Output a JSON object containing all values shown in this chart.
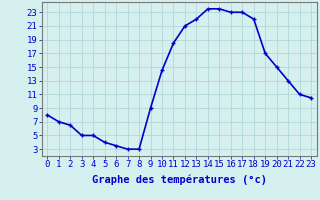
{
  "hours": [
    0,
    1,
    2,
    3,
    4,
    5,
    6,
    7,
    8,
    9,
    10,
    11,
    12,
    13,
    14,
    15,
    16,
    17,
    18,
    19,
    20,
    21,
    22,
    23
  ],
  "temps": [
    8,
    7,
    6.5,
    5,
    5,
    4,
    3.5,
    3,
    3,
    9,
    14.5,
    18.5,
    21,
    22,
    23.5,
    23.5,
    23,
    23,
    22,
    17,
    15,
    13,
    11,
    10.5
  ],
  "line_color": "#0000cc",
  "marker": "+",
  "bg_color": "#d6f0f0",
  "grid_color": "#b0d8d8",
  "xlabel": "Graphe des températures (°c)",
  "xlabel_color": "#0000cc",
  "ylabel_ticks": [
    3,
    5,
    7,
    9,
    11,
    13,
    15,
    17,
    19,
    21,
    23
  ],
  "ylim": [
    2,
    24.5
  ],
  "xlim": [
    -0.5,
    23.5
  ],
  "xtick_labels": [
    "0",
    "1",
    "2",
    "3",
    "4",
    "5",
    "6",
    "7",
    "8",
    "9",
    "10",
    "11",
    "12",
    "13",
    "14",
    "15",
    "16",
    "17",
    "18",
    "19",
    "20",
    "21",
    "22",
    "23"
  ],
  "tick_color": "#0000cc",
  "spine_color": "#777777",
  "font_size_ticks": 6.5,
  "font_size_xlabel": 7.5,
  "linewidth": 1.2,
  "markersize": 3.5
}
